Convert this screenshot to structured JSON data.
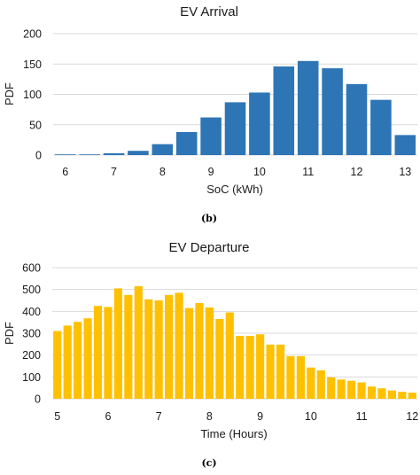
{
  "chart_data": [
    {
      "type": "bar",
      "title": "EV Arrival",
      "xlabel": "SoC (kWh)",
      "ylabel": "PDF",
      "caption": "(b)",
      "ylim": [
        0,
        200
      ],
      "yticks": [
        "0",
        "50",
        "100",
        "150",
        "200"
      ],
      "xlim": [
        6,
        13
      ],
      "xticks": [
        "6",
        "7",
        "8",
        "9",
        "10",
        "11",
        "12",
        "13"
      ],
      "grid": true,
      "color": "#2e75b6",
      "bar_width": 0.43,
      "x": [
        6,
        6.5,
        7,
        7.5,
        8,
        8.5,
        9,
        9.5,
        10,
        10.5,
        11,
        11.5,
        12,
        12.5,
        13
      ],
      "values": [
        1,
        1,
        3,
        7,
        18,
        38,
        62,
        87,
        103,
        146,
        155,
        143,
        117,
        91,
        33
      ]
    },
    {
      "type": "bar",
      "title": "EV Departure",
      "xlabel": "Time (Hours)",
      "ylabel": "PDF",
      "caption": "(c)",
      "ylim": [
        0,
        600
      ],
      "yticks": [
        "0",
        "100",
        "200",
        "300",
        "400",
        "500",
        "600"
      ],
      "xlim": [
        5,
        12
      ],
      "xticks": [
        "5",
        "6",
        "7",
        "8",
        "9",
        "10",
        "11",
        "12"
      ],
      "grid": true,
      "color": "#ffc000",
      "bar_width": 0.16,
      "x": [
        5,
        5.2,
        5.4,
        5.6,
        5.8,
        6,
        6.2,
        6.4,
        6.6,
        6.8,
        7,
        7.2,
        7.4,
        7.6,
        7.8,
        8,
        8.2,
        8.4,
        8.6,
        8.8,
        9,
        9.2,
        9.4,
        9.6,
        9.8,
        10,
        10.2,
        10.4,
        10.6,
        10.8,
        11,
        11.2,
        11.4,
        11.6,
        11.8,
        12
      ],
      "values": [
        310,
        335,
        352,
        368,
        425,
        420,
        505,
        475,
        515,
        455,
        450,
        475,
        485,
        415,
        438,
        418,
        365,
        395,
        288,
        288,
        295,
        248,
        248,
        195,
        195,
        143,
        130,
        98,
        88,
        82,
        75,
        56,
        48,
        38,
        32,
        28
      ]
    }
  ]
}
